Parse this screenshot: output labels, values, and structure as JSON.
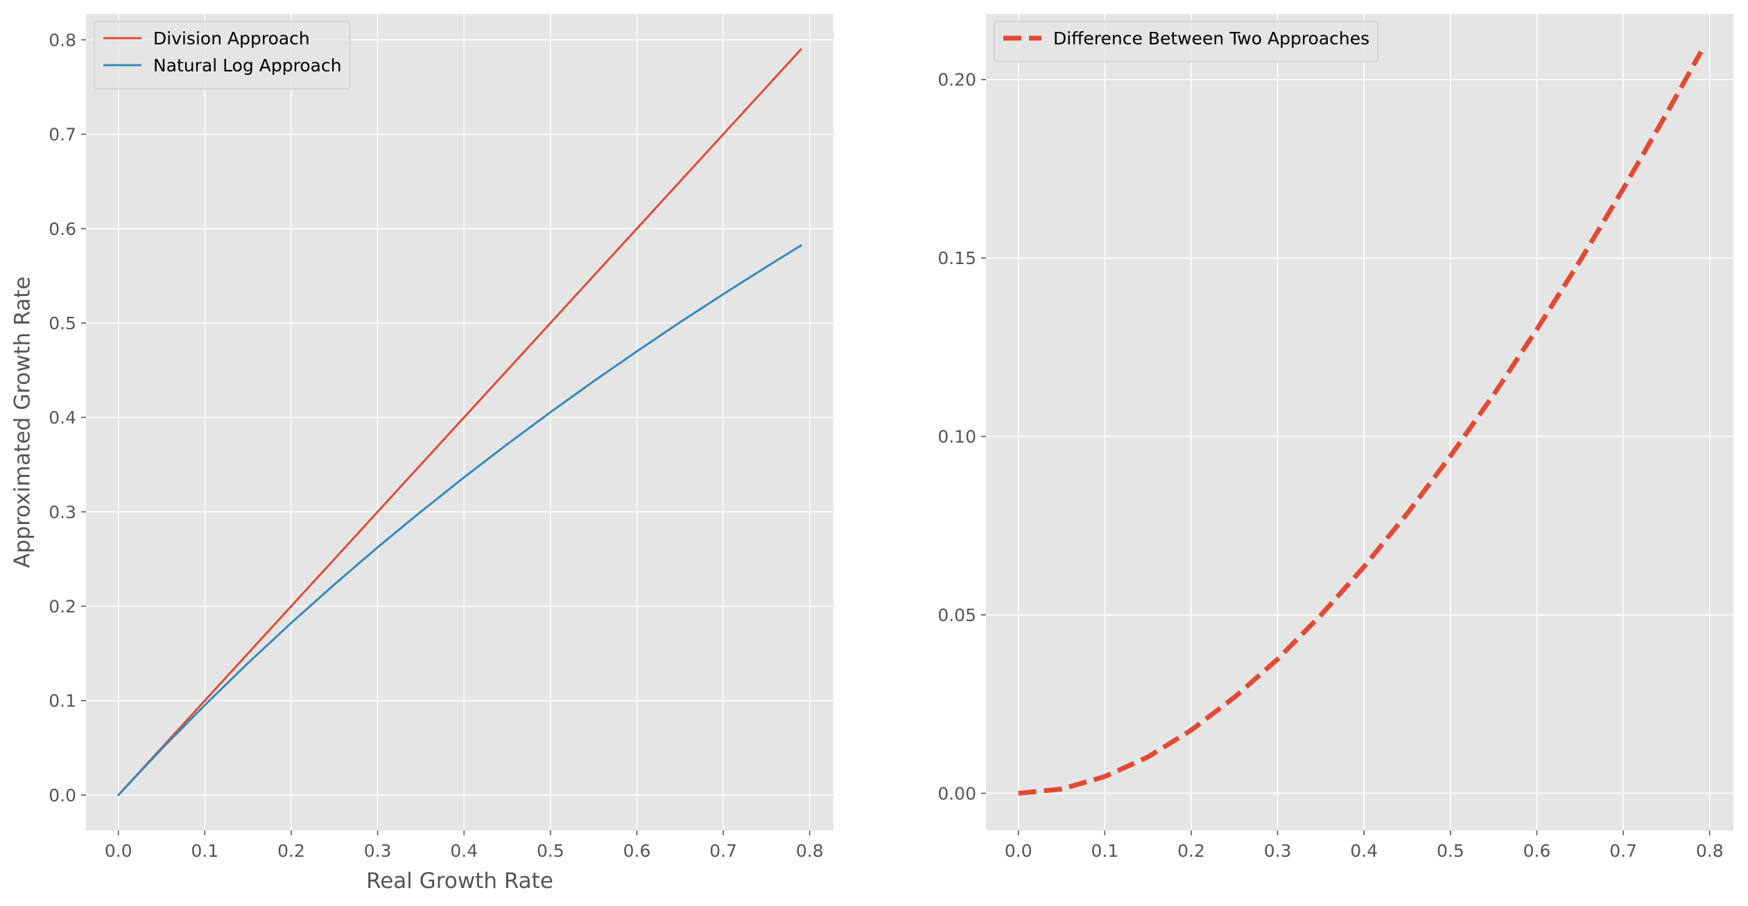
{
  "chart_data": [
    {
      "type": "line",
      "xlabel": "Real Growth Rate",
      "ylabel": "Approximated Growth Rate",
      "xlim": [
        -0.0375,
        0.8275
      ],
      "ylim": [
        -0.0375,
        0.8275
      ],
      "xticks": [
        "0.0",
        "0.1",
        "0.2",
        "0.3",
        "0.4",
        "0.5",
        "0.6",
        "0.7",
        "0.8"
      ],
      "yticks": [
        "0.0",
        "0.1",
        "0.2",
        "0.3",
        "0.4",
        "0.5",
        "0.6",
        "0.7",
        "0.8"
      ],
      "grid": true,
      "legend_position": "top-left",
      "series": [
        {
          "name": "Division Approach",
          "color": "#E24A33",
          "style": "solid",
          "x": [
            0.0,
            0.05,
            0.1,
            0.15,
            0.2,
            0.25,
            0.3,
            0.35,
            0.4,
            0.45,
            0.5,
            0.55,
            0.6,
            0.65,
            0.7,
            0.75,
            0.79
          ],
          "y": [
            0.0,
            0.05,
            0.1,
            0.15,
            0.2,
            0.25,
            0.3,
            0.35,
            0.4,
            0.45,
            0.5,
            0.55,
            0.6,
            0.65,
            0.7,
            0.75,
            0.79
          ]
        },
        {
          "name": "Natural Log Approach",
          "color": "#348ABD",
          "style": "solid",
          "x": [
            0.0,
            0.05,
            0.1,
            0.15,
            0.2,
            0.25,
            0.3,
            0.35,
            0.4,
            0.45,
            0.5,
            0.55,
            0.6,
            0.65,
            0.7,
            0.75,
            0.79
          ],
          "y": [
            0.0,
            0.0488,
            0.0953,
            0.1398,
            0.1823,
            0.2231,
            0.2624,
            0.3001,
            0.3365,
            0.3716,
            0.4055,
            0.4383,
            0.47,
            0.5008,
            0.5306,
            0.5596,
            0.5822
          ]
        }
      ]
    },
    {
      "type": "line",
      "xlabel": "",
      "ylabel": "",
      "xlim": [
        -0.0375,
        0.8275
      ],
      "ylim": [
        -0.0104,
        0.2184
      ],
      "xticks": [
        "0.0",
        "0.1",
        "0.2",
        "0.3",
        "0.4",
        "0.5",
        "0.6",
        "0.7",
        "0.8"
      ],
      "yticks": [
        "0.00",
        "0.05",
        "0.10",
        "0.15",
        "0.20"
      ],
      "grid": true,
      "legend_position": "top-left",
      "series": [
        {
          "name": "Difference Between Two Approaches",
          "color": "#E24A33",
          "style": "dashed",
          "x": [
            0.0,
            0.05,
            0.1,
            0.15,
            0.2,
            0.25,
            0.3,
            0.35,
            0.4,
            0.45,
            0.5,
            0.55,
            0.6,
            0.65,
            0.7,
            0.75,
            0.79
          ],
          "y": [
            0.0,
            0.0012,
            0.0047,
            0.0102,
            0.0177,
            0.0269,
            0.0376,
            0.0499,
            0.0635,
            0.0784,
            0.0945,
            0.1117,
            0.13,
            0.1492,
            0.1694,
            0.1904,
            0.2078
          ]
        }
      ]
    }
  ]
}
